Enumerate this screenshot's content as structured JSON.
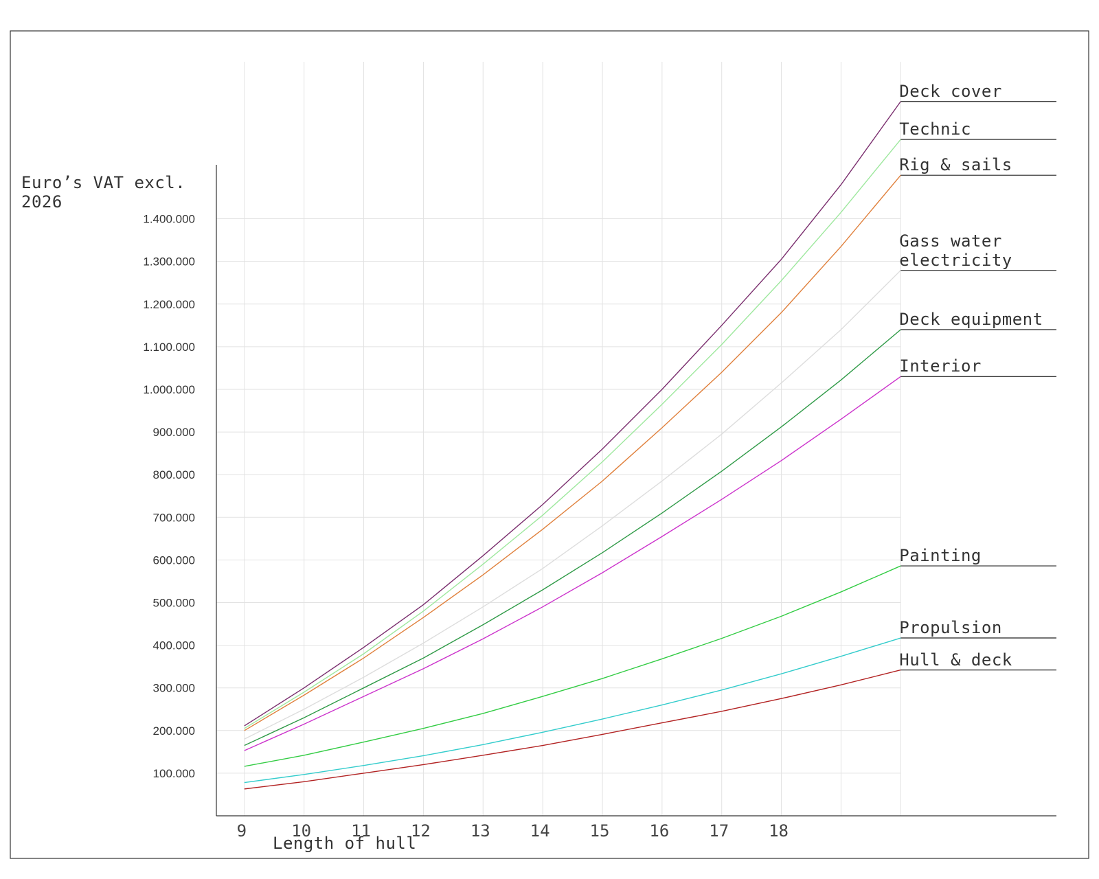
{
  "chart_data": {
    "type": "line",
    "ylabel": "Euro’s VAT excl. 2026",
    "xlabel": "Length of hull",
    "x": [
      9,
      10,
      11,
      12,
      13,
      14,
      15,
      16,
      17,
      18,
      19,
      20
    ],
    "xlim": [
      8.53,
      22.61
    ],
    "xticks": [
      9,
      10,
      11,
      12,
      13,
      14,
      15,
      16,
      17,
      18
    ],
    "x_grid": [
      9,
      10,
      11,
      12,
      13,
      14,
      15,
      16,
      17,
      18,
      19,
      20
    ],
    "ylim": [
      0,
      1768000
    ],
    "yticks": [
      {
        "value": 100000,
        "label": "100.000"
      },
      {
        "value": 200000,
        "label": "200.000"
      },
      {
        "value": 300000,
        "label": "300.000"
      },
      {
        "value": 400000,
        "label": "400.000"
      },
      {
        "value": 500000,
        "label": "500.000"
      },
      {
        "value": 600000,
        "label": "600.000"
      },
      {
        "value": 700000,
        "label": "700.000"
      },
      {
        "value": 800000,
        "label": "800.000"
      },
      {
        "value": 900000,
        "label": "900.000"
      },
      {
        "value": 1000000,
        "label": "1.000.000"
      },
      {
        "value": 1100000,
        "label": "1.100.000"
      },
      {
        "value": 1200000,
        "label": "1.200.000"
      },
      {
        "value": 1300000,
        "label": "1.300.000"
      },
      {
        "value": 1400000,
        "label": "1.400.000"
      }
    ],
    "grid": true,
    "series": [
      {
        "name": "Deck cover",
        "color": "#7a2e6e",
        "values": [
          211000,
          300000,
          395000,
          495000,
          610000,
          730000,
          860000,
          1000000,
          1150000,
          1305000,
          1480000,
          1675000
        ]
      },
      {
        "name": "Technic",
        "color": "#9ee89e",
        "values": [
          205000,
          290000,
          380000,
          480000,
          590000,
          705000,
          830000,
          965000,
          1105000,
          1255000,
          1415000,
          1586000
        ]
      },
      {
        "name": "Rig & sails",
        "color": "#e0803c",
        "values": [
          200000,
          283000,
          370000,
          465000,
          565000,
          672000,
          785000,
          910000,
          1040000,
          1180000,
          1335000,
          1502000
        ]
      },
      {
        "name": "Gass water electricity",
        "color": "#dddddd",
        "values": [
          180000,
          250000,
          325000,
          405000,
          490000,
          580000,
          680000,
          785000,
          895000,
          1015000,
          1140000,
          1279000
        ]
      },
      {
        "name": "Deck equipment",
        "color": "#2f9a47",
        "values": [
          165000,
          230000,
          300000,
          370000,
          448000,
          530000,
          617000,
          710000,
          808000,
          912000,
          1022000,
          1140000
        ]
      },
      {
        "name": "Interior",
        "color": "#cc33cc",
        "values": [
          153000,
          215000,
          280000,
          345000,
          415000,
          490000,
          570000,
          655000,
          742000,
          833000,
          930000,
          1030000
        ]
      },
      {
        "name": "Painting",
        "color": "#33cc44",
        "values": [
          116000,
          142000,
          173000,
          205000,
          240000,
          280000,
          322000,
          368000,
          416000,
          468000,
          525000,
          586000
        ]
      },
      {
        "name": "Propulsion",
        "color": "#33cccc",
        "values": [
          78000,
          97000,
          118000,
          141000,
          167000,
          196000,
          227000,
          260000,
          295000,
          333000,
          374000,
          417000
        ]
      },
      {
        "name": "Hull & deck",
        "color": "#b22222",
        "values": [
          63000,
          80000,
          100000,
          120000,
          142000,
          165000,
          191000,
          218000,
          245000,
          275000,
          307000,
          342000
        ]
      }
    ]
  }
}
